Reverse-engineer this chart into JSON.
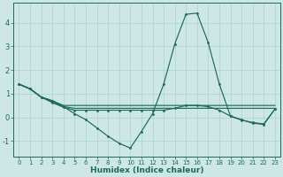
{
  "xlabel": "Humidex (Indice chaleur)",
  "x": [
    0,
    1,
    2,
    3,
    4,
    5,
    6,
    7,
    8,
    9,
    10,
    11,
    12,
    13,
    14,
    15,
    16,
    17,
    18,
    19,
    20,
    21,
    22,
    23
  ],
  "line_main": [
    1.4,
    1.2,
    0.85,
    0.7,
    0.45,
    0.15,
    -0.1,
    -0.45,
    -0.8,
    -1.1,
    -1.3,
    -0.6,
    0.15,
    1.4,
    3.1,
    4.35,
    4.4,
    3.15,
    1.4,
    0.05,
    -0.1,
    -0.25,
    -0.3,
    0.35
  ],
  "line_flat1": [
    1.4,
    1.2,
    0.85,
    0.7,
    0.5,
    0.5,
    0.5,
    0.5,
    0.5,
    0.5,
    0.5,
    0.5,
    0.5,
    0.5,
    0.5,
    0.5,
    0.5,
    0.5,
    0.5,
    0.5,
    0.5,
    0.5,
    0.5,
    0.5
  ],
  "line_flat2": [
    1.4,
    1.2,
    0.85,
    0.65,
    0.45,
    0.38,
    0.38,
    0.38,
    0.38,
    0.38,
    0.38,
    0.38,
    0.38,
    0.38,
    0.38,
    0.38,
    0.38,
    0.38,
    0.38,
    0.38,
    0.38,
    0.38,
    0.38,
    0.38
  ],
  "line_flat3": [
    1.4,
    1.2,
    0.85,
    0.62,
    0.42,
    0.3,
    0.3,
    0.3,
    0.3,
    0.3,
    0.3,
    0.3,
    0.3,
    0.3,
    0.38,
    0.5,
    0.5,
    0.45,
    0.3,
    0.05,
    -0.12,
    -0.22,
    -0.28,
    0.35
  ],
  "color": "#1a6b5a",
  "bg_color": "#cde8e4",
  "grid_color": "#aed0cc",
  "ylim_min": -1.65,
  "ylim_max": 4.85,
  "yticks": [
    -1,
    0,
    1,
    2,
    3,
    4
  ],
  "xticks": [
    0,
    1,
    2,
    3,
    4,
    5,
    6,
    7,
    8,
    9,
    10,
    11,
    12,
    13,
    14,
    15,
    16,
    17,
    18,
    19,
    20,
    21,
    22,
    23
  ]
}
